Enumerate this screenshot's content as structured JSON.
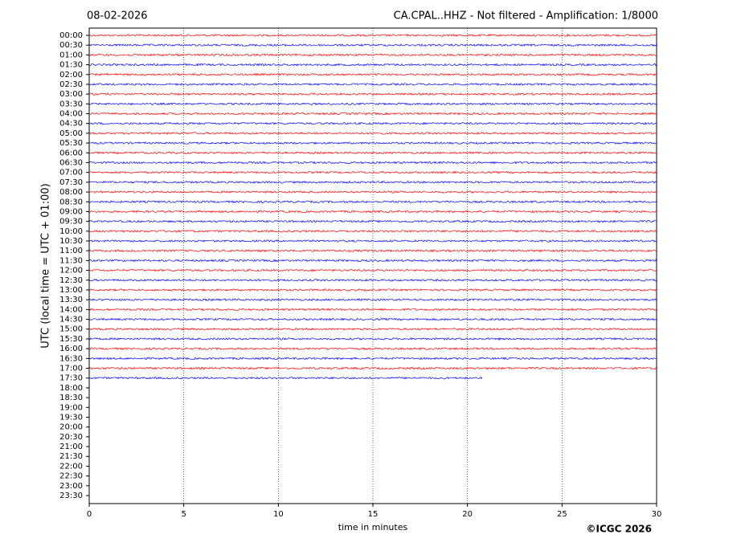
{
  "chart_data": {
    "type": "helicorder",
    "title": "CA.CPAL..HHZ - Not filtered - Amplification: 1/8000",
    "subtitle": "08-02-2026",
    "x_label": "time in minutes",
    "y_label": "UTC (local time = UTC + 01:00)",
    "credit": "©ICGC 2026",
    "categories": [
      "00:00",
      "00:30",
      "01:00",
      "01:30",
      "02:00",
      "02:30",
      "03:00",
      "03:30",
      "04:00",
      "04:30",
      "05:00",
      "05:30",
      "06:00",
      "06:30",
      "07:00",
      "07:30",
      "08:00",
      "08:30",
      "09:00",
      "09:30",
      "10:00",
      "10:30",
      "11:00",
      "11:30",
      "12:00",
      "12:30",
      "13:00",
      "13:30",
      "14:00",
      "14:30",
      "15:00",
      "15:30",
      "16:00",
      "16:30",
      "17:00",
      "17:30",
      "18:00",
      "18:30",
      "19:00",
      "19:30",
      "20:00",
      "20:30",
      "21:00",
      "21:30",
      "22:00",
      "22:30",
      "23:00",
      "23:30"
    ],
    "values": [
      30,
      30,
      30,
      30,
      30,
      30,
      30,
      30,
      30,
      30,
      30,
      30,
      30,
      30,
      30,
      30,
      30,
      30,
      30,
      30,
      30,
      30,
      30,
      30,
      30,
      30,
      30,
      30,
      30,
      30,
      30,
      30,
      30,
      30,
      30,
      20.8,
      null,
      null,
      null,
      null,
      null,
      null,
      null,
      null,
      null,
      null,
      null,
      null
    ],
    "colors": [
      "#ff0000",
      "#0000ff"
    ],
    "xlim": [
      0,
      30
    ],
    "xticks": [
      0,
      5,
      10,
      15,
      20,
      25,
      30
    ],
    "grid": true
  }
}
